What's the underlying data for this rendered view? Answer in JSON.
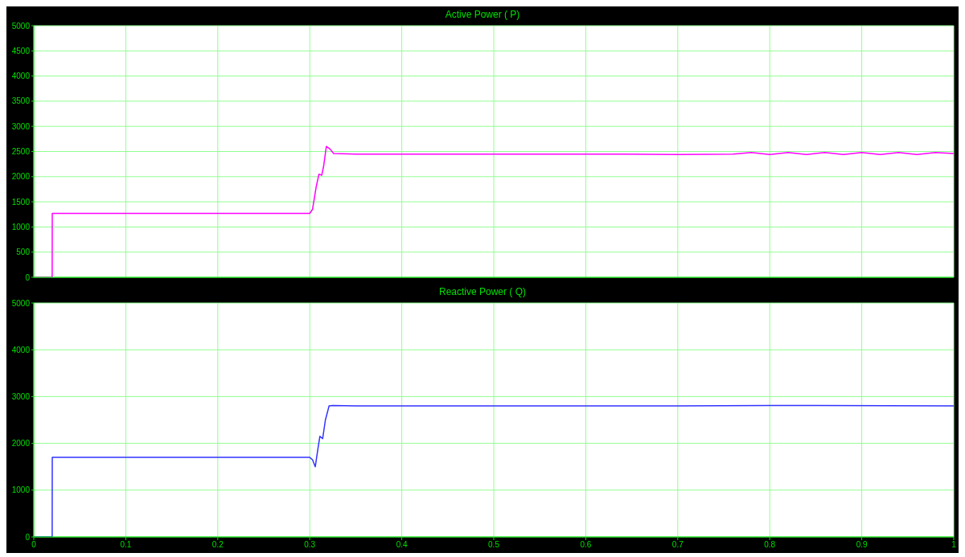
{
  "chart_data": [
    {
      "type": "line",
      "title": "Active Power ( P)",
      "x": [
        0,
        0.02,
        0.0201,
        0.1,
        0.2,
        0.3,
        0.303,
        0.307,
        0.31,
        0.313,
        0.315,
        0.318,
        0.322,
        0.326,
        0.35,
        0.5,
        0.64,
        0.7,
        0.76,
        0.78,
        0.8,
        0.82,
        0.84,
        0.86,
        0.88,
        0.9,
        0.92,
        0.94,
        0.96,
        0.98,
        1
      ],
      "series": [
        {
          "color": "#ff00ff",
          "values": [
            0,
            0,
            1270,
            1270,
            1270,
            1270,
            1350,
            1800,
            2050,
            2030,
            2200,
            2600,
            2550,
            2460,
            2450,
            2450,
            2450,
            2440,
            2450,
            2480,
            2440,
            2480,
            2440,
            2480,
            2440,
            2480,
            2440,
            2480,
            2440,
            2480,
            2460
          ]
        }
      ],
      "xlim": [
        0,
        1
      ],
      "xticks": [
        0,
        0.1,
        0.2,
        0.3,
        0.4,
        0.5,
        0.6,
        0.7,
        0.8,
        0.9,
        1
      ],
      "ylim": [
        0,
        5000
      ],
      "yticks": [
        0,
        500,
        1000,
        1500,
        2000,
        2500,
        3000,
        3500,
        4000,
        4500,
        5000
      ],
      "grid": true,
      "tick_labels": "y"
    },
    {
      "type": "line",
      "title": "Reactive Power ( Q)",
      "x": [
        0,
        0.02,
        0.0201,
        0.1,
        0.2,
        0.3,
        0.303,
        0.306,
        0.309,
        0.311,
        0.314,
        0.317,
        0.321,
        0.325,
        0.35,
        0.5,
        0.7,
        0.8,
        1
      ],
      "series": [
        {
          "color": "#3333ff",
          "values": [
            0,
            0,
            1700,
            1700,
            1700,
            1700,
            1650,
            1500,
            1900,
            2150,
            2100,
            2500,
            2800,
            2810,
            2800,
            2800,
            2800,
            2810,
            2800
          ]
        }
      ],
      "xlim": [
        0,
        1
      ],
      "xticks": [
        0,
        0.1,
        0.2,
        0.3,
        0.4,
        0.5,
        0.6,
        0.7,
        0.8,
        0.9,
        1
      ],
      "ylim": [
        0,
        5000
      ],
      "yticks": [
        0,
        1000,
        2000,
        3000,
        4000,
        5000
      ],
      "grid": true
    }
  ]
}
